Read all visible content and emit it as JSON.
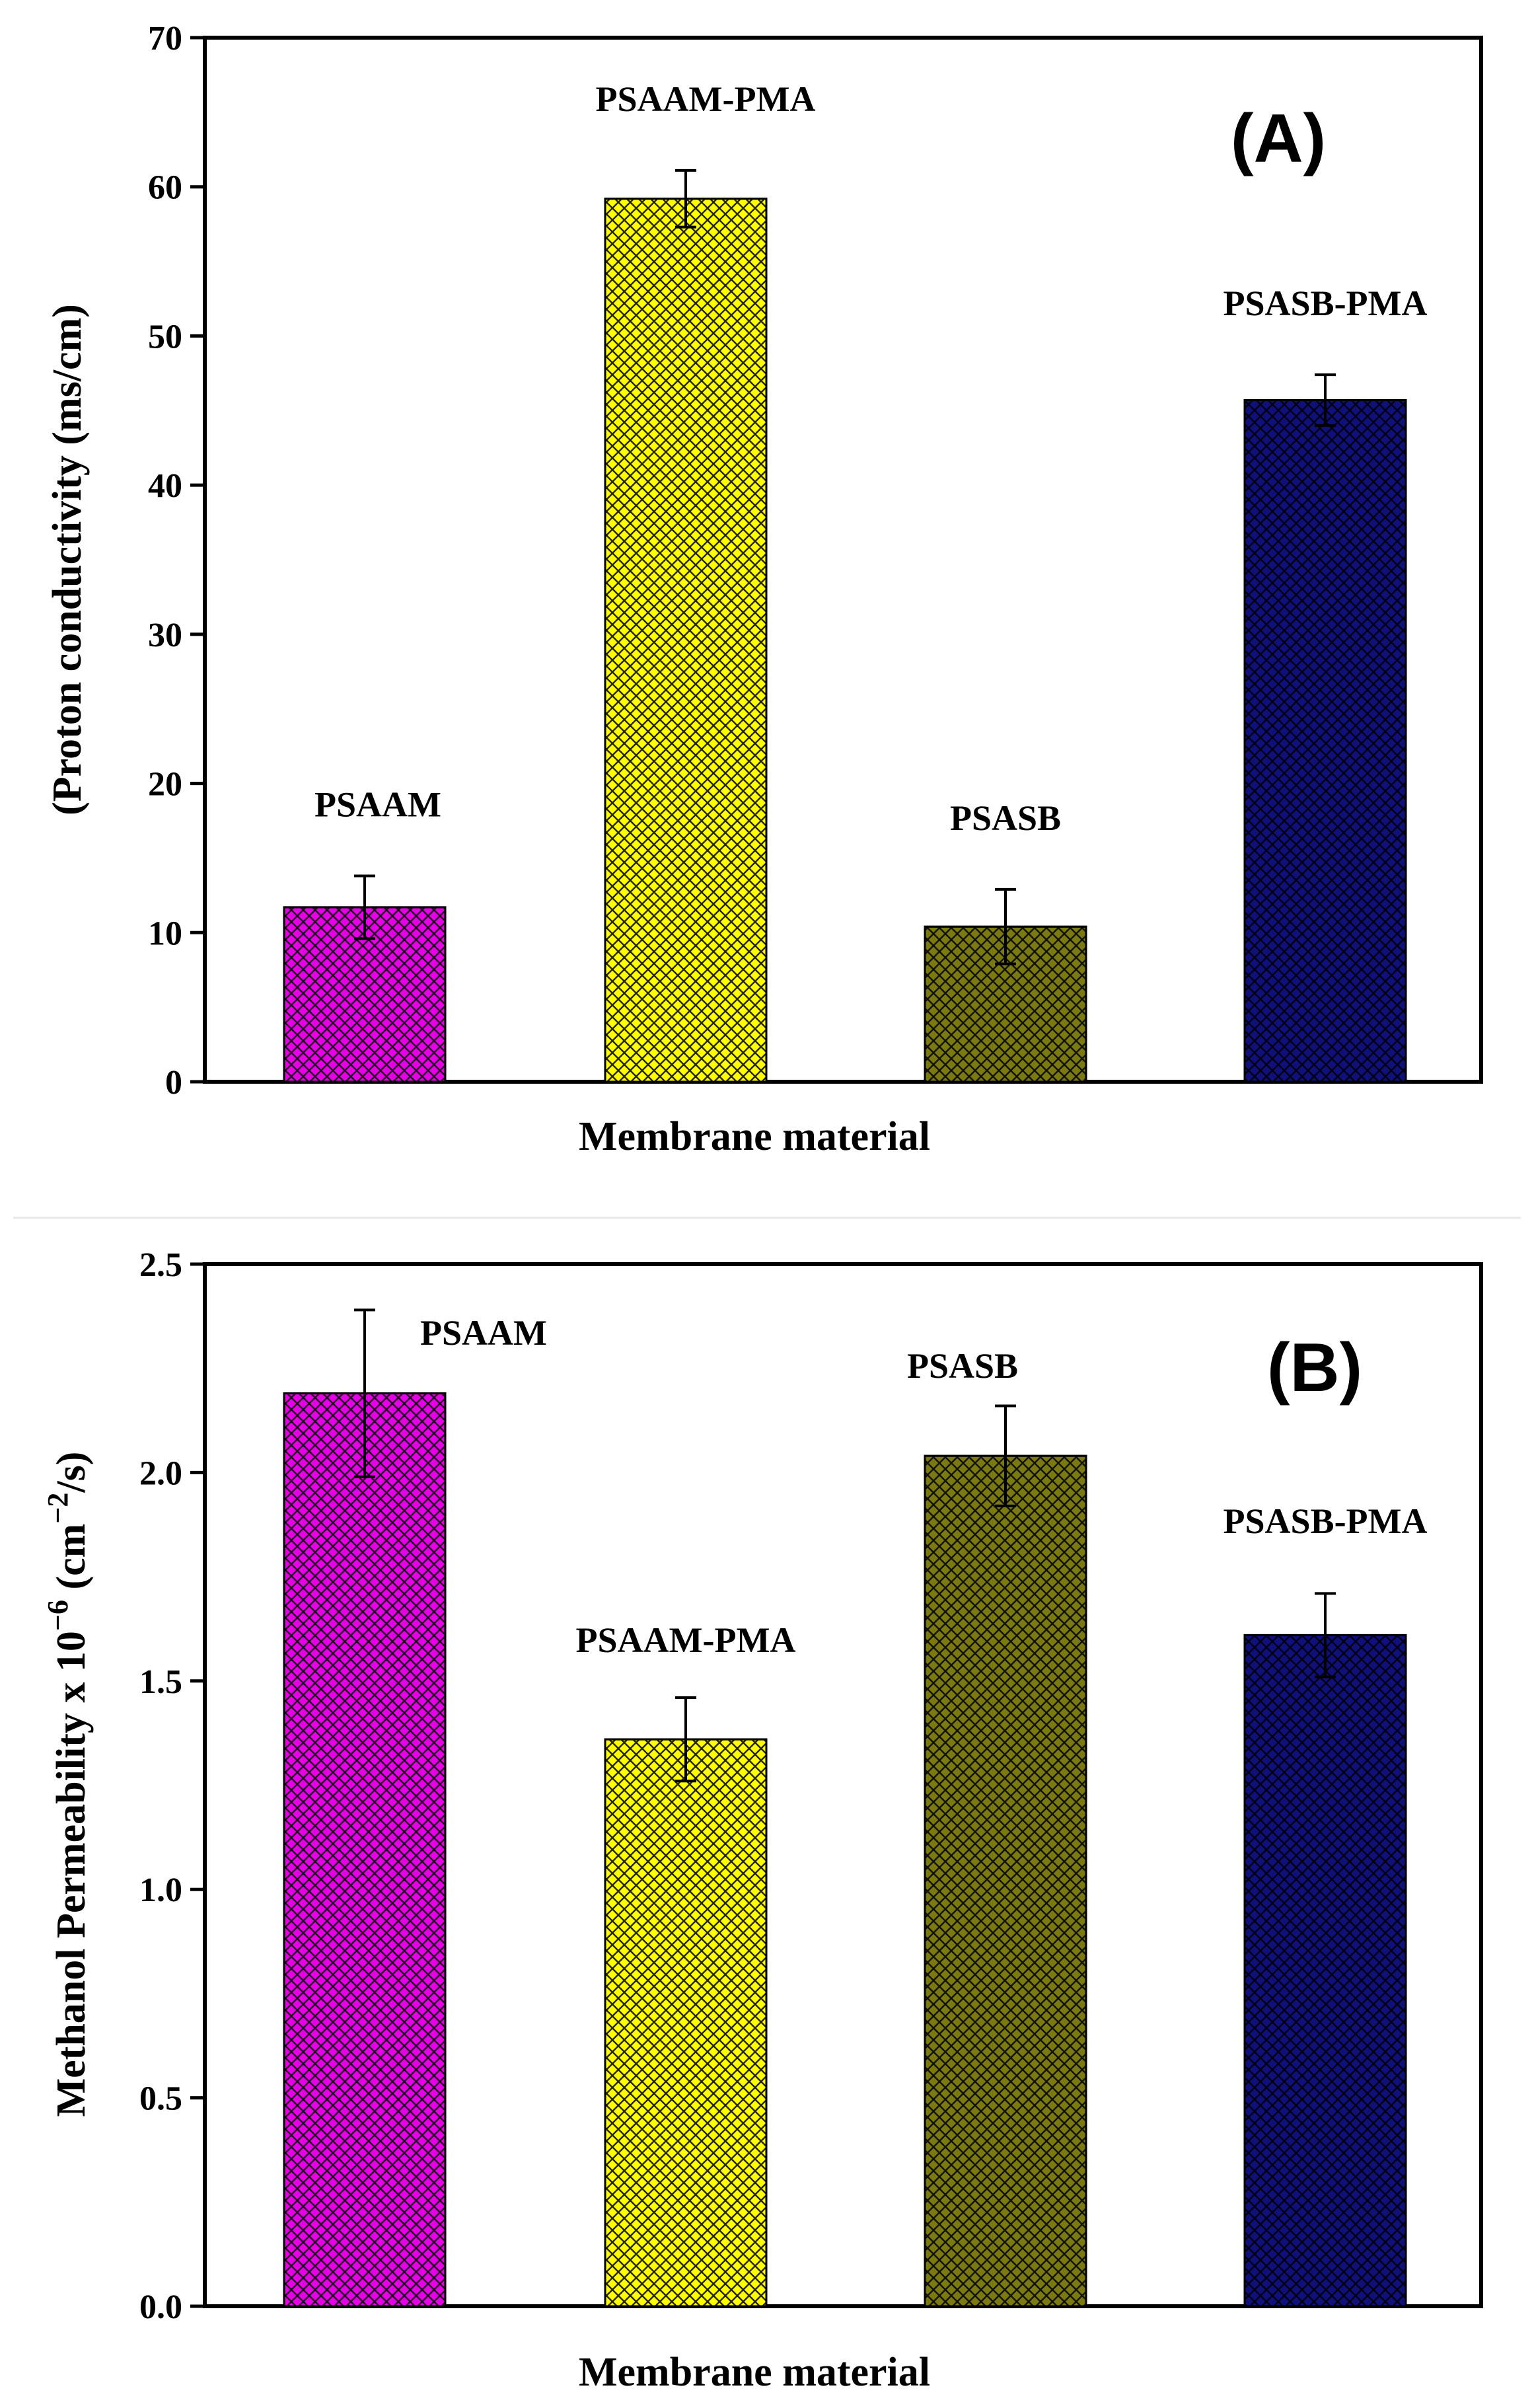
{
  "chart_data": [
    {
      "type": "bar",
      "panel_label": "(A)",
      "categories": [
        "PSAAM",
        "PSAAM-PMA",
        "PSASB",
        "PSASB-PMA"
      ],
      "values": [
        11.7,
        59.2,
        10.4,
        45.7
      ],
      "errors": [
        2.1,
        1.9,
        2.5,
        1.7
      ],
      "xlabel": "Membrane material",
      "ylabel": "(Proton conductivity (ms/cm)",
      "ylim": [
        0,
        70
      ],
      "yticks": [
        0,
        10,
        20,
        30,
        40,
        50,
        60,
        70
      ],
      "yticks_text": [
        "0",
        "10",
        "20",
        "30",
        "40",
        "50",
        "60",
        "70"
      ],
      "colors": [
        "#e600e6",
        "#ffff00",
        "#7a7a10",
        "#10107a"
      ],
      "grid": false
    },
    {
      "type": "bar",
      "panel_label": "(B)",
      "categories": [
        "PSAAM",
        "PSAAM-PMA",
        "PSASB",
        "PSASB-PMA"
      ],
      "values": [
        2.19,
        1.36,
        2.04,
        1.61
      ],
      "errors": [
        0.2,
        0.1,
        0.12,
        0.1
      ],
      "xlabel": "Membrane material",
      "ylabel": "Methanol Permeability x 10",
      "ylabel_sup": "−6",
      "ylabel_unit": " (cm",
      "ylabel_unit_sup": "−2",
      "ylabel_unit_end": "/s)",
      "ylim": [
        0,
        2.5
      ],
      "yticks": [
        0,
        0.5,
        1.0,
        1.5,
        2.0,
        2.5
      ],
      "yticks_text": [
        "0.0",
        "0.5",
        "1.0",
        "1.5",
        "2.0",
        "2.5"
      ],
      "colors": [
        "#e600e6",
        "#ffff00",
        "#7a7a10",
        "#10107a"
      ],
      "grid": false
    }
  ]
}
